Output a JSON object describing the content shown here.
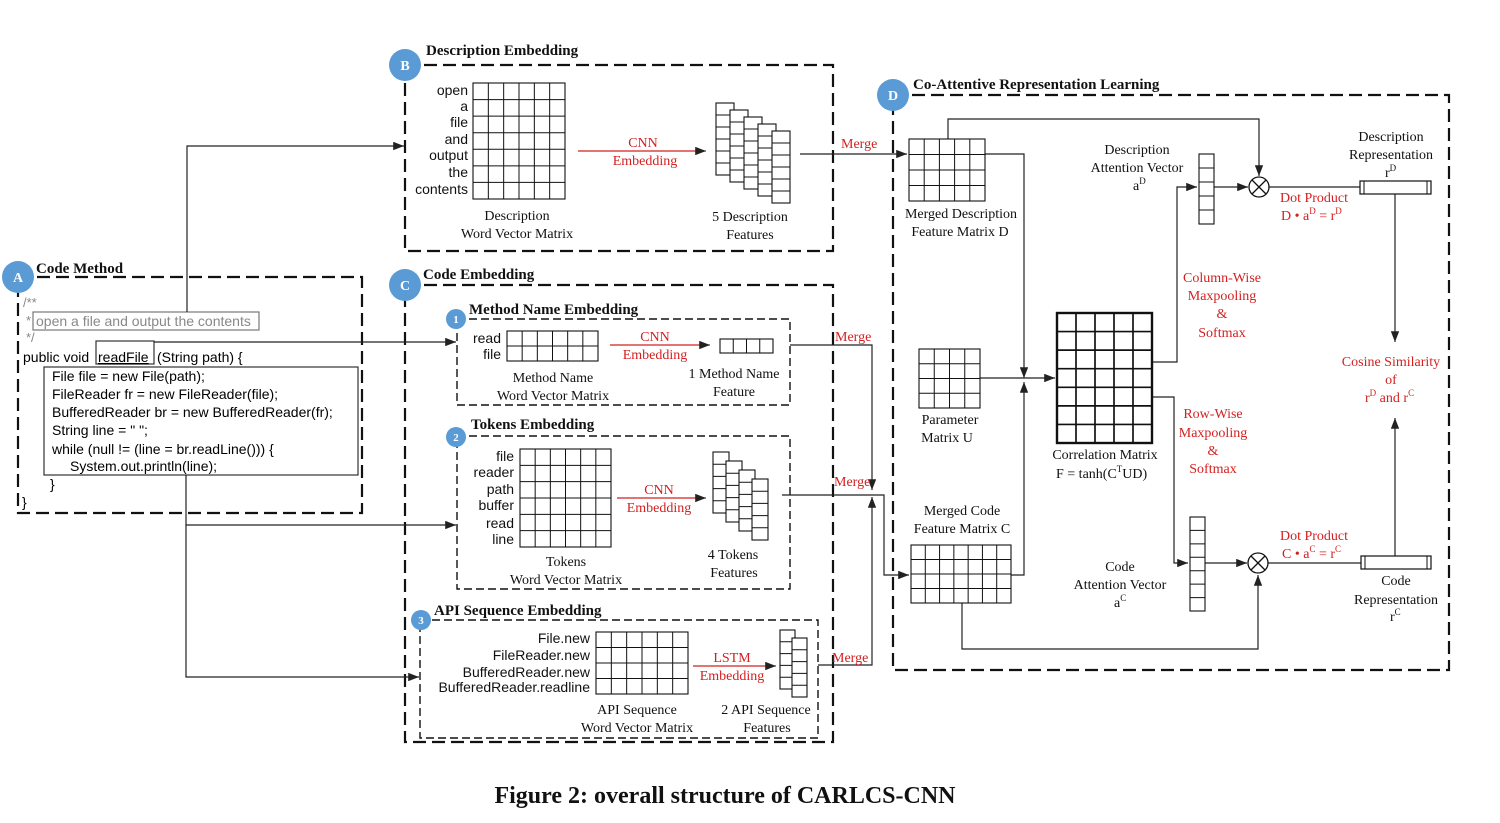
{
  "figure": {
    "caption": "Figure 2: overall structure of CARLCS-CNN"
  },
  "sections": {
    "A": {
      "badge": "A",
      "title": "Code Method"
    },
    "B": {
      "badge": "B",
      "title": "Description Embedding"
    },
    "C": {
      "badge": "C",
      "title": "Code Embedding"
    },
    "C1": {
      "badge": "1",
      "title": "Method Name Embedding"
    },
    "C2": {
      "badge": "2",
      "title": "Tokens Embedding"
    },
    "C3": {
      "badge": "3",
      "title": "API Sequence Embedding"
    },
    "D": {
      "badge": "D",
      "title": "Co-Attentive Representation Learning"
    }
  },
  "code_method": {
    "comment_open": "/**",
    "comment_star": "*",
    "comment_text": "open a file and output the contents",
    "comment_close": "*/",
    "sig_prefix": "public void",
    "method_name": "readFile",
    "sig_suffix": "(String path) {",
    "body": [
      "File file = new File(path);",
      "FileReader fr = new FileReader(file);",
      "BufferedReader br = new BufferedReader(fr);",
      "String line = \" \";",
      "while (null != (line = br.readLine())) {",
      "    System.out.println(line);",
      "}"
    ],
    "closing": "}"
  },
  "description": {
    "words": [
      "open",
      "a",
      "file",
      "and",
      "output",
      "the",
      "contents"
    ],
    "matrix_label": [
      "Description",
      "Word Vector Matrix"
    ],
    "op": [
      "CNN",
      "Embedding"
    ],
    "features_label": [
      "5 Description",
      "Features"
    ],
    "merge": "Merge"
  },
  "method_name": {
    "words": [
      "read",
      "file"
    ],
    "matrix_label": [
      "Method Name",
      "Word Vector Matrix"
    ],
    "op": [
      "CNN",
      "Embedding"
    ],
    "features_label": [
      "1 Method Name",
      "Feature"
    ],
    "merge": "Merge"
  },
  "tokens": {
    "words": [
      "file",
      "reader",
      "path",
      "buffer",
      "read",
      "line"
    ],
    "matrix_label": [
      "Tokens",
      "Word Vector Matrix"
    ],
    "op": [
      "CNN",
      "Embedding"
    ],
    "features_label": [
      "4 Tokens",
      "Features"
    ],
    "merge": "Merge"
  },
  "api": {
    "words": [
      "File.new",
      "FileReader.new",
      "BufferedReader.new",
      "BufferedReader.readline"
    ],
    "matrix_label": [
      "API Sequence",
      "Word Vector Matrix"
    ],
    "op": [
      "LSTM",
      "Embedding"
    ],
    "features_label": [
      "2 API Sequence",
      "Features"
    ],
    "merge": "Merge"
  },
  "coattention": {
    "merged_desc": [
      "Merged Description",
      "Feature Matrix  D"
    ],
    "param_u": [
      "Parameter",
      "Matrix U"
    ],
    "merged_code": [
      "Merged Code",
      "Feature Matrix  C"
    ],
    "correlation": [
      "Correlation Matrix",
      "F = tanh(C",
      "T",
      "UD)"
    ],
    "desc_att": [
      "Description",
      "Attention Vector",
      "a",
      "D"
    ],
    "code_att": [
      "Code",
      "Attention Vector",
      "a",
      "C"
    ],
    "col_pool": [
      "Column-Wise",
      "Maxpooling",
      "&",
      "Softmax"
    ],
    "row_pool": [
      "Row-Wise",
      "Maxpooling",
      "&",
      "Softmax"
    ],
    "dot_desc": [
      "Dot Product",
      "D • a",
      "D",
      " =  r",
      "D"
    ],
    "dot_code": [
      "Dot Product",
      "C • a",
      "C",
      " = r",
      "C"
    ],
    "desc_rep": [
      "Description",
      "Representation",
      "r",
      "D"
    ],
    "code_rep": [
      "Code",
      "Representation",
      "r",
      "C"
    ],
    "cosine": [
      "Cosine Similarity",
      "of",
      "r",
      "D",
      " and r",
      "C"
    ]
  },
  "colors": {
    "badge": "#5b9bd5",
    "annotation": "#d42020",
    "line": "#222222"
  }
}
